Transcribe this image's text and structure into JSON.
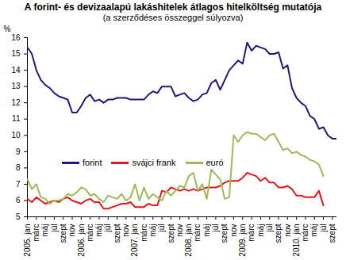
{
  "chart_data": {
    "type": "line",
    "title": "A forint- és devizaalapú lakáshitelek átlagos hitelköltség mutatója",
    "subtitle": "(a szerződéses összeggel súlyozva)",
    "y_label": "%",
    "categories": [
      "2005. jan",
      null,
      "márc",
      null,
      "máj",
      null,
      "júl",
      null,
      "szept",
      null,
      "nov",
      null,
      "2006. jan",
      null,
      "márc",
      null,
      "máj",
      null,
      "júl",
      null,
      "szept",
      null,
      "nov",
      null,
      "2007. jan",
      null,
      "márc",
      null,
      "máj",
      null,
      "júl",
      null,
      "szept",
      null,
      "nov",
      null,
      "2008. jan",
      null,
      "márc",
      null,
      "máj",
      null,
      "júl",
      null,
      "szept",
      null,
      "nov",
      null,
      "2009. jan",
      null,
      "márc",
      null,
      "máj",
      null,
      "júl",
      null,
      "szept",
      null,
      "nov",
      null,
      "2010. jan",
      null,
      "márc",
      null,
      "máj",
      null,
      "júl",
      null,
      "szept",
      null
    ],
    "series": [
      {
        "name": "forint",
        "color": "#1f1a7a",
        "values": [
          15.4,
          15.0,
          14.0,
          13.4,
          13.1,
          12.9,
          12.6,
          12.4,
          12.3,
          12.2,
          11.4,
          11.4,
          11.8,
          12.3,
          12.5,
          12.1,
          12.2,
          12.0,
          12.2,
          12.2,
          12.3,
          12.3,
          12.3,
          12.2,
          12.2,
          12.2,
          12.2,
          12.5,
          12.7,
          12.6,
          13.0,
          13.0,
          13.0,
          12.4,
          12.5,
          12.6,
          12.3,
          12.1,
          12.2,
          12.5,
          12.6,
          13.2,
          13.4,
          12.8,
          13.4,
          14.0,
          14.3,
          14.6,
          14.4,
          15.7,
          15.2,
          15.5,
          15.4,
          15.3,
          15.0,
          15.0,
          15.1,
          14.1,
          14.3,
          12.9,
          12.3,
          12.0,
          11.8,
          11.2,
          11.0,
          10.4,
          10.5,
          10.0,
          9.8,
          9.8
        ]
      },
      {
        "name": "svájci frank",
        "color": "#e8141c",
        "values": [
          6.1,
          5.9,
          6.2,
          6.0,
          5.8,
          5.9,
          6.0,
          5.9,
          6.1,
          6.2,
          6.0,
          5.9,
          5.8,
          6.0,
          6.1,
          5.9,
          5.9,
          5.5,
          5.5,
          5.6,
          5.7,
          5.8,
          5.8,
          5.9,
          5.6,
          5.6,
          5.6,
          5.8,
          5.7,
          5.7,
          6.6,
          6.5,
          6.8,
          6.7,
          6.6,
          6.7,
          6.6,
          6.7,
          6.6,
          6.7,
          6.8,
          6.8,
          6.8,
          6.9,
          7.1,
          7.2,
          7.2,
          7.2,
          7.4,
          7.7,
          7.6,
          7.5,
          7.2,
          7.4,
          7.1,
          7.1,
          6.8,
          6.8,
          6.9,
          6.7,
          6.3,
          6.3,
          6.2,
          6.2,
          6.2,
          6.6,
          5.7,
          null,
          null,
          null
        ]
      },
      {
        "name": "euró",
        "color": "#9bbb59",
        "values": [
          7.3,
          6.7,
          7.0,
          6.2,
          6.1,
          5.8,
          6.0,
          6.0,
          6.1,
          6.4,
          6.3,
          6.5,
          6.8,
          6.7,
          6.3,
          6.4,
          6.1,
          5.9,
          6.3,
          6.2,
          6.1,
          6.4,
          6.0,
          6.2,
          7.0,
          6.0,
          6.8,
          6.1,
          6.4,
          6.2,
          6.0,
          6.6,
          6.3,
          6.6,
          6.9,
          6.8,
          7.5,
          7.7,
          6.6,
          7.0,
          6.1,
          7.9,
          7.6,
          7.3,
          6.1,
          6.2,
          10.0,
          9.6,
          10.0,
          10.2,
          10.1,
          10.1,
          9.9,
          9.7,
          10.0,
          10.1,
          9.6,
          9.1,
          9.2,
          8.9,
          9.0,
          8.8,
          8.7,
          8.5,
          8.4,
          8.2,
          7.5,
          null,
          null,
          null
        ]
      }
    ],
    "ylim": [
      5,
      16
    ],
    "yticks": [
      5,
      6,
      7,
      8,
      9,
      10,
      11,
      12,
      13,
      14,
      15,
      16
    ],
    "grid": false,
    "legend": "inside"
  }
}
